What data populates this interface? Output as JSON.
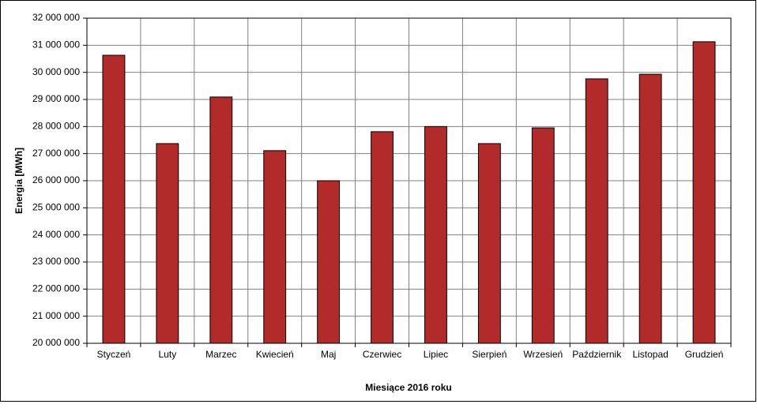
{
  "chart_data": {
    "type": "bar",
    "x_label": "Miesiące 2016 roku",
    "y_label": "Energia [MWh]",
    "categories": [
      "Styczeń",
      "Luty",
      "Marzec",
      "Kwiecień",
      "Maj",
      "Czerwiec",
      "Lipiec",
      "Sierpień",
      "Wrzesień",
      "Październik",
      "Listopad",
      "Grudzień"
    ],
    "values": [
      30630000,
      27370000,
      29090000,
      27110000,
      26000000,
      27810000,
      28000000,
      27370000,
      27950000,
      29760000,
      29930000,
      31130000
    ],
    "color": "#b22a29",
    "ylim": [
      20000000,
      32000000
    ],
    "yticks": [
      {
        "value": 20000000,
        "label": "20 000 000"
      },
      {
        "value": 21000000,
        "label": "21 000 000"
      },
      {
        "value": 22000000,
        "label": "22 000 000"
      },
      {
        "value": 23000000,
        "label": "23 000 000"
      },
      {
        "value": 24000000,
        "label": "24 000 000"
      },
      {
        "value": 25000000,
        "label": "25 000 000"
      },
      {
        "value": 26000000,
        "label": "26 000 000"
      },
      {
        "value": 27000000,
        "label": "27 000 000"
      },
      {
        "value": 28000000,
        "label": "28 000 000"
      },
      {
        "value": 29000000,
        "label": "29 000 000"
      },
      {
        "value": 30000000,
        "label": "30 000 000"
      },
      {
        "value": 31000000,
        "label": "31 000 000"
      },
      {
        "value": 32000000,
        "label": "32 000 000"
      }
    ],
    "grid": true
  }
}
